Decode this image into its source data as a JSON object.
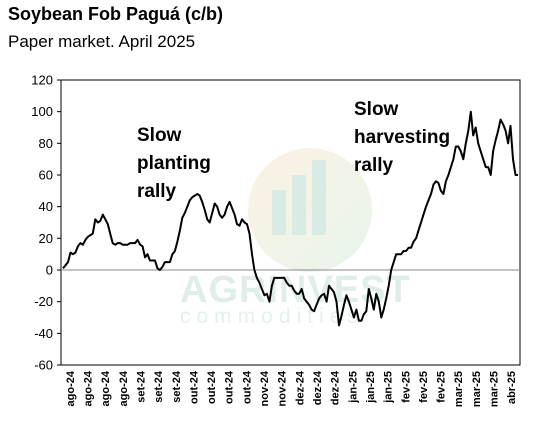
{
  "chart_data": {
    "type": "line",
    "title": "Soybean Fob Paguá (c/b)",
    "subtitle": "Paper market. April 2025",
    "xlabel": "",
    "ylabel": "",
    "ylim": [
      -60,
      120
    ],
    "yticks": [
      120,
      100,
      80,
      60,
      40,
      20,
      0,
      -20,
      -40,
      -60
    ],
    "x_tick_labels": [
      "ago-24",
      "ago-24",
      "ago-24",
      "ago-24",
      "set-24",
      "set-24",
      "set-24",
      "out-24",
      "out-24",
      "out-24",
      "out-24",
      "nov-24",
      "nov-24",
      "dez-24",
      "dez-24",
      "dez-24",
      "jan-25",
      "jan-25",
      "jan-25",
      "fev-25",
      "fev-25",
      "fev-25",
      "mar-25",
      "mar-25",
      "mar-25",
      "abr-25"
    ],
    "grid": false,
    "legend": "none",
    "annotations": [
      {
        "lines": [
          "Slow",
          "planting",
          "rally"
        ]
      },
      {
        "lines": [
          "Slow",
          "harvesting",
          "rally"
        ]
      }
    ],
    "watermark": {
      "brand": "AGRINVEST",
      "sub": "commodities"
    },
    "series": [
      {
        "color": "#000000",
        "values": [
          1,
          3,
          5,
          11,
          10,
          11,
          15,
          17,
          16,
          19,
          21,
          22,
          23,
          32,
          30,
          31,
          35,
          32,
          29,
          23,
          17,
          16,
          17,
          17,
          16,
          16,
          16,
          17,
          17,
          17,
          19,
          16,
          15,
          8,
          10,
          6,
          6,
          6,
          1,
          0,
          2,
          5,
          5,
          5,
          10,
          12,
          18,
          25,
          33,
          36,
          40,
          44,
          46,
          47,
          48,
          47,
          43,
          38,
          32,
          30,
          36,
          42,
          40,
          35,
          33,
          35,
          40,
          43,
          39,
          35,
          29,
          28,
          32,
          30,
          29,
          23,
          10,
          0,
          -5,
          -8,
          -12,
          -16,
          -15,
          -20,
          -10,
          -5,
          -5,
          -5,
          -5,
          -5,
          -8,
          -10,
          -10,
          -13,
          -15,
          -15,
          -12,
          -18,
          -20,
          -22,
          -25,
          -26,
          -22,
          -18,
          -16,
          -15,
          -20,
          -10,
          -12,
          -14,
          -20,
          -35,
          -29,
          -22,
          -16,
          -20,
          -25,
          -30,
          -25,
          -32,
          -32,
          -28,
          -26,
          -12,
          -18,
          -25,
          -15,
          -20,
          -30,
          -25,
          -18,
          -10,
          0,
          5,
          10,
          10,
          10,
          12,
          12,
          14,
          14,
          18,
          20,
          25,
          30,
          35,
          40,
          44,
          48,
          54,
          56,
          55,
          50,
          48,
          56,
          60,
          65,
          70,
          78,
          78,
          75,
          70,
          80,
          88,
          100,
          85,
          90,
          80,
          75,
          70,
          65,
          65,
          60,
          75,
          82,
          88,
          95,
          92,
          88,
          80,
          91,
          70,
          60,
          60
        ]
      }
    ]
  }
}
